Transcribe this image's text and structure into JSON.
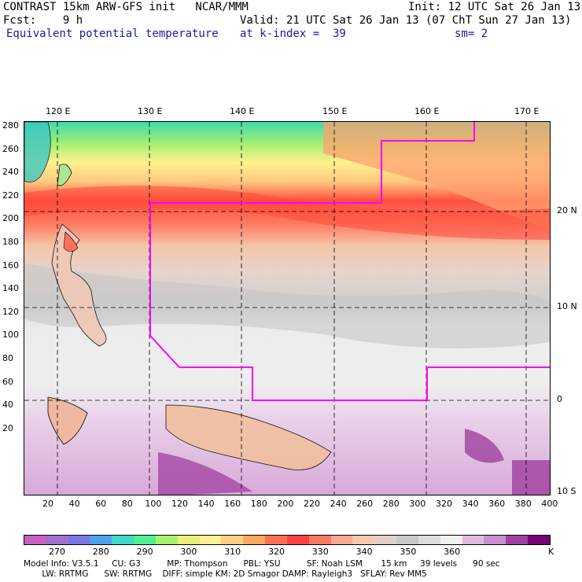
{
  "header": {
    "line1_left": "CONTRAST 15km ARW-GFS init   NCAR/MMM",
    "line1_right": "Init: 12 UTC Sat 26 Jan 13",
    "line2_left": "Fcst:    9 h",
    "line2_right": "Valid: 21 UTC Sat 26 Jan 13 (07 ChT Sun 27 Jan 13)",
    "line3_left": "Equivalent potential temperature",
    "line3_mid": "at k-index =  39",
    "line3_right": "sm= 2"
  },
  "map": {
    "lon_labels": [
      "120 E",
      "130 E",
      "140 E",
      "150 E",
      "160 E",
      "170 E"
    ],
    "lat_labels": [
      "20 N",
      "10 N",
      "0",
      "10 S"
    ],
    "y_grid_labels": [
      "280",
      "260",
      "240",
      "220",
      "200",
      "180",
      "160",
      "140",
      "120",
      "100",
      "80",
      "60",
      "40",
      "20"
    ],
    "x_grid_labels": [
      "20",
      "40",
      "60",
      "80",
      "100",
      "120",
      "140",
      "160",
      "180",
      "200",
      "220",
      "240",
      "260",
      "280",
      "300",
      "320",
      "340",
      "360",
      "380",
      "400"
    ],
    "domain_outline_color": "#ff00ff"
  },
  "colorbar": {
    "labels": [
      "270",
      "280",
      "290",
      "300",
      "310",
      "320",
      "330",
      "340",
      "350",
      "360"
    ],
    "unit": "K",
    "colors": [
      "#c860c8",
      "#a070d0",
      "#7878e0",
      "#50a0f0",
      "#40d8c8",
      "#50f090",
      "#a8f070",
      "#e8f078",
      "#fff090",
      "#ffd080",
      "#ffa860",
      "#ff7050",
      "#ff4040",
      "#ff7860",
      "#ffa890",
      "#f4c8b0",
      "#e0d0c8",
      "#c8c8c8",
      "#dcdcdc",
      "#f0f0f0",
      "#e0b8e0",
      "#c890d0",
      "#a040a0",
      "#780078"
    ]
  },
  "footer": {
    "line1": "Model Info: V3.5.1     CU: G3          MP: Thompson      PBL: YSU          SF: Noah LSM       15 km     39 levels      90 sec",
    "line2": "       LW: RRTMG      SW: RRTMG    DIFF: simple KM: 2D Smagor DAMP: Rayleigh3   SFLAY: Rev MM5"
  }
}
